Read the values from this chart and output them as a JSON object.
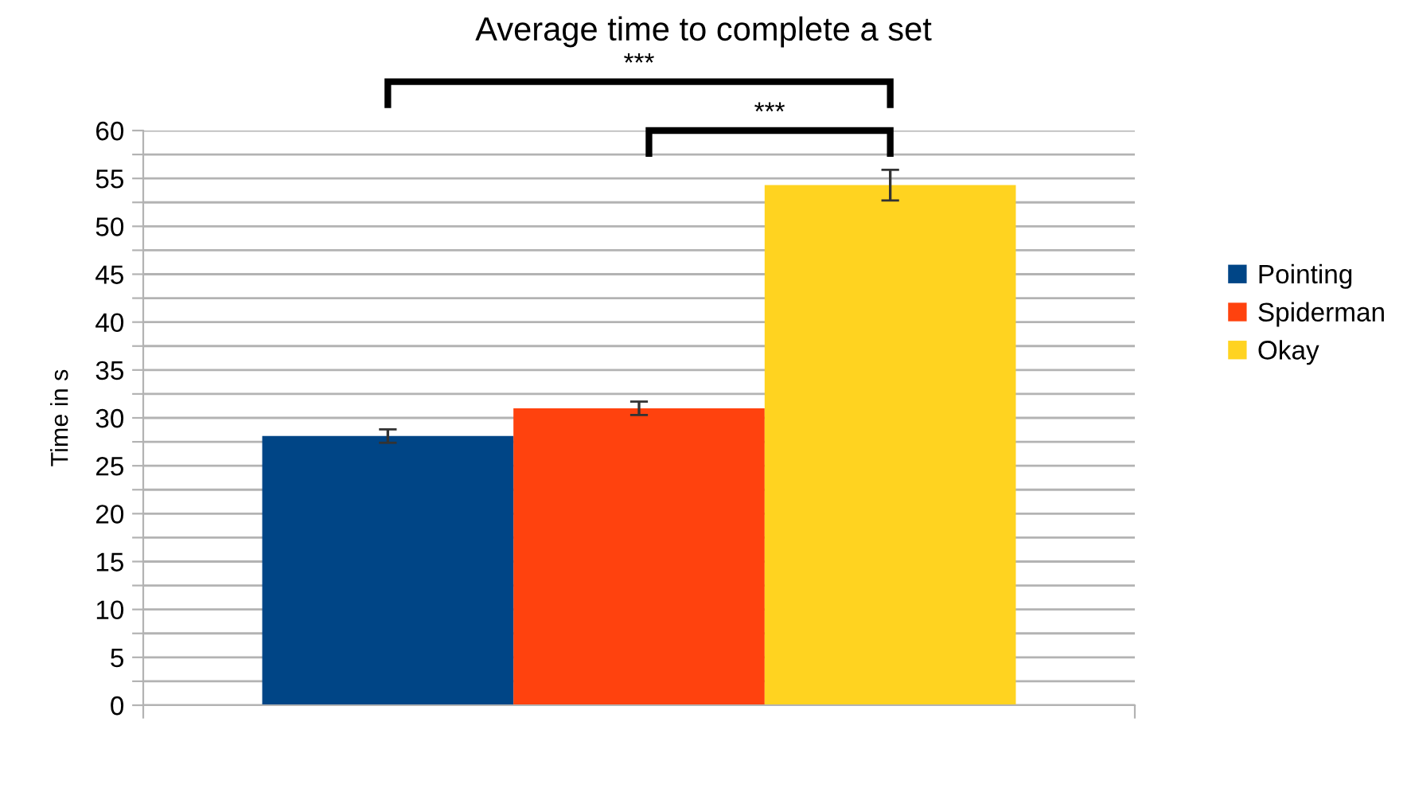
{
  "chart_data": {
    "type": "bar",
    "title": "Average time to complete a set",
    "ylabel": "Time in s",
    "categories": [
      null
    ],
    "series": [
      {
        "name": "Pointing",
        "color": "#004586",
        "values": [
          28.1
        ],
        "errors": [
          0.7
        ]
      },
      {
        "name": "Spiderman",
        "color": "#ff420e",
        "values": [
          31.0
        ],
        "errors": [
          0.7
        ]
      },
      {
        "name": "Okay",
        "color": "#ffd320",
        "values": [
          54.3
        ],
        "errors": [
          1.6
        ]
      }
    ],
    "annotations": [
      "***",
      "***"
    ],
    "ylim": [
      0,
      60
    ],
    "yticks": [
      0,
      {
        "value": 2.5,
        "label": null
      },
      5,
      {
        "value": 7.5,
        "label": null
      },
      10,
      {
        "value": 12.5,
        "label": null
      },
      15,
      {
        "value": 17.5,
        "label": null
      },
      20,
      {
        "value": 22.5,
        "label": null
      },
      25,
      {
        "value": 27.5,
        "label": null
      },
      30,
      {
        "value": 32.5,
        "label": null
      },
      35,
      {
        "value": 37.5,
        "label": null
      },
      40,
      {
        "value": 42.5,
        "label": null
      },
      45,
      {
        "value": 47.5,
        "label": null
      },
      50,
      {
        "value": 52.5,
        "label": null
      },
      55,
      {
        "value": 57.5,
        "label": null
      },
      60
    ],
    "grid": "y",
    "legend": "right"
  }
}
